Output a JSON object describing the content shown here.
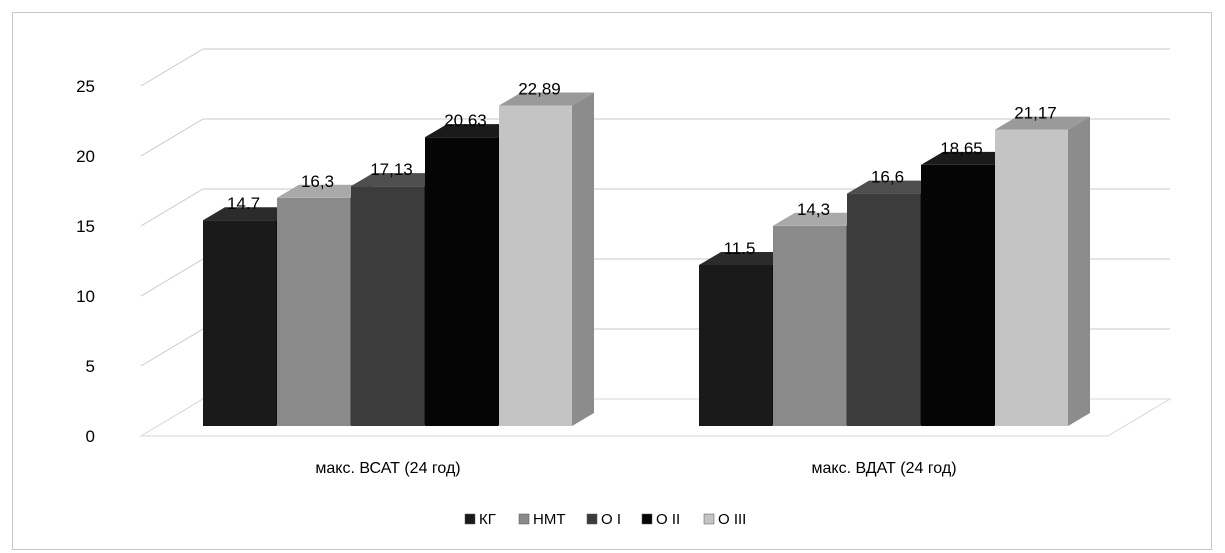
{
  "chart_data": {
    "type": "bar",
    "categories": [
      "макс. ВСАТ (24 год)",
      "макс. ВДАТ (24 год)"
    ],
    "series": [
      {
        "name": "КГ",
        "values": [
          14.7,
          11.5
        ]
      },
      {
        "name": "НМТ",
        "values": [
          16.3,
          14.3
        ]
      },
      {
        "name": "О I",
        "values": [
          17.13,
          16.6
        ]
      },
      {
        "name": "О II",
        "values": [
          20.63,
          18.65
        ]
      },
      {
        "name": "О III",
        "values": [
          22.89,
          21.17
        ]
      }
    ],
    "data_labels": [
      [
        "14.7",
        "11.5"
      ],
      [
        "16,3",
        "14,3"
      ],
      [
        "17,13",
        "16,6"
      ],
      [
        "20,63",
        "18,65"
      ],
      [
        "22,89",
        "21,17"
      ]
    ],
    "yticks": [
      "0",
      "5",
      "10",
      "15",
      "20",
      "25"
    ],
    "ylim": [
      0,
      25
    ],
    "grid": true,
    "legend_position": "bottom",
    "style": "3d-column",
    "colors": {
      "КГ": {
        "front": "#1a1a1a",
        "top": "#2b2b2b",
        "side": "#0e0e0e"
      },
      "НМТ": {
        "front": "#8a8a8a",
        "top": "#a9a9a9",
        "side": "#5f5f5f"
      },
      "О I": {
        "front": "#3c3c3c",
        "top": "#4e4e4e",
        "side": "#262626"
      },
      "О II": {
        "front": "#050505",
        "top": "#1a1a1a",
        "side": "#000000"
      },
      "О III": {
        "front": "#c4c4c4",
        "top": "#9a9a9a",
        "side": "#8c8c8c"
      }
    }
  }
}
